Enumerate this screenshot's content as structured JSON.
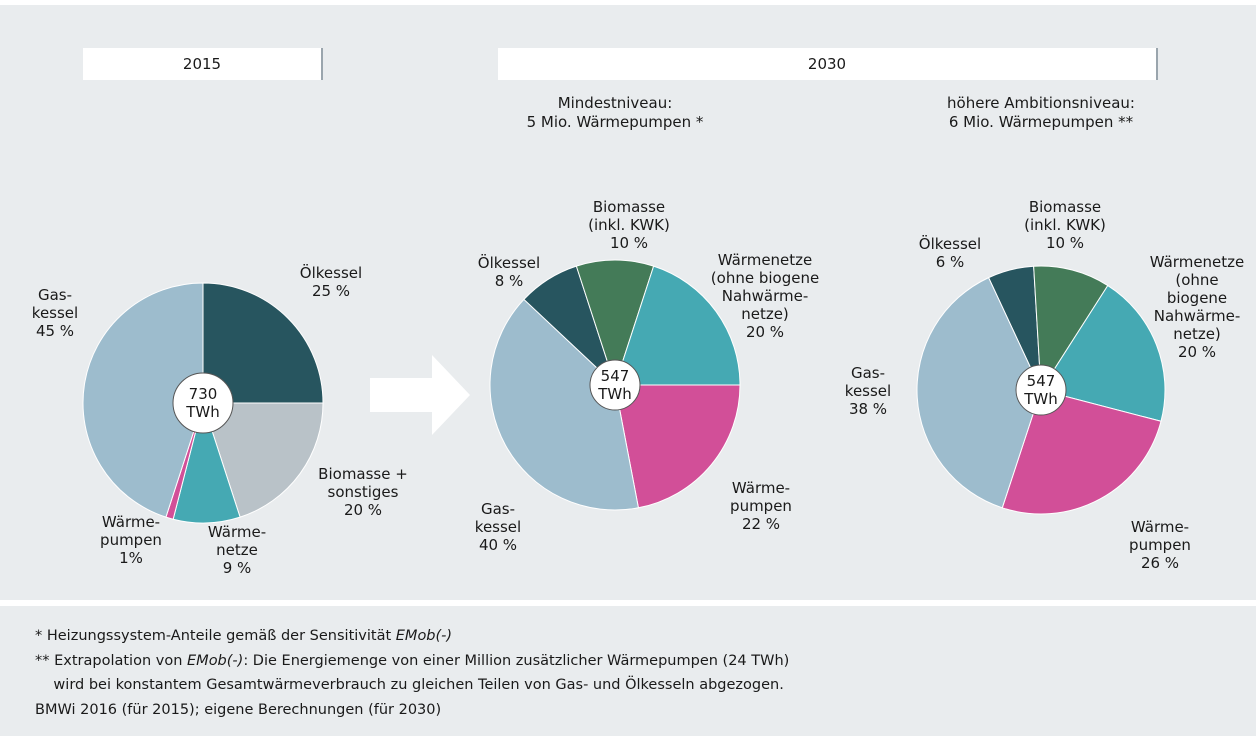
{
  "header": {
    "left": "2015",
    "right": "2030"
  },
  "chart_data": [
    {
      "type": "pie",
      "center_label": "730\nTWh",
      "categories": [
        "Ölkessel",
        "Biomasse +\nsonstiges",
        "Wärme-\nnetze",
        "Wärme-\npumpen",
        "Gas-\nkessel"
      ],
      "values": [
        25,
        20,
        9,
        1,
        45
      ],
      "value_labels": [
        "25 %",
        "20 %",
        "9 %",
        "1%",
        "45 %"
      ],
      "colors": [
        "#27555f",
        "#b9c2c8",
        "#45a9b3",
        "#d24f98",
        "#9dbccd"
      ]
    },
    {
      "type": "pie",
      "subtitle": "Mindestniveau:\n5 Mio. Wärmepumpen *",
      "center_label": "547\nTWh",
      "categories": [
        "Ölkessel",
        "Biomasse\n(inkl. KWK)",
        "Wärmenetze\n(ohne biogene\nNahwärme-\nnetze)",
        "Wärme-\npumpen",
        "Gas-\nkessel"
      ],
      "values": [
        8,
        10,
        20,
        22,
        40
      ],
      "value_labels": [
        "8 %",
        "10 %",
        "20 %",
        "22 %",
        "40 %"
      ],
      "colors": [
        "#27555f",
        "#447b58",
        "#45a9b3",
        "#d24f98",
        "#9dbccd"
      ]
    },
    {
      "type": "pie",
      "subtitle": "höhere Ambitionsniveau:\n6 Mio. Wärmepumpen **",
      "center_label": "547\nTWh",
      "categories": [
        "Ölkessel",
        "Biomasse\n(inkl. KWK)",
        "Wärmenetze\n(ohne biogene\nNahwärme-\nnetze)",
        "Wärme-\npumpen",
        "Gas-\nkessel"
      ],
      "values": [
        6,
        10,
        20,
        26,
        38
      ],
      "value_labels": [
        "6 %",
        "10 %",
        "20 %",
        "26 %",
        "38 %"
      ],
      "colors": [
        "#27555f",
        "#447b58",
        "#45a9b3",
        "#d24f98",
        "#9dbccd"
      ]
    }
  ],
  "footnotes": [
    [
      "* Heizungssystem-Anteile gemäß der Sensitivität ",
      "EMob(-)"
    ],
    [
      "** Extrapolation von ",
      "EMob(-)",
      ": Die Energiemenge von einer Million zusätzlicher Wärmepumpen (24 TWh)"
    ],
    [
      "    wird bei konstantem Gesamtwärmeverbrauch zu gleichen Teilen von Gas- und Ölkesseln abgezogen."
    ],
    [
      "BMWi 2016 (für 2015); eigene Berechnungen (für 2030)"
    ]
  ]
}
